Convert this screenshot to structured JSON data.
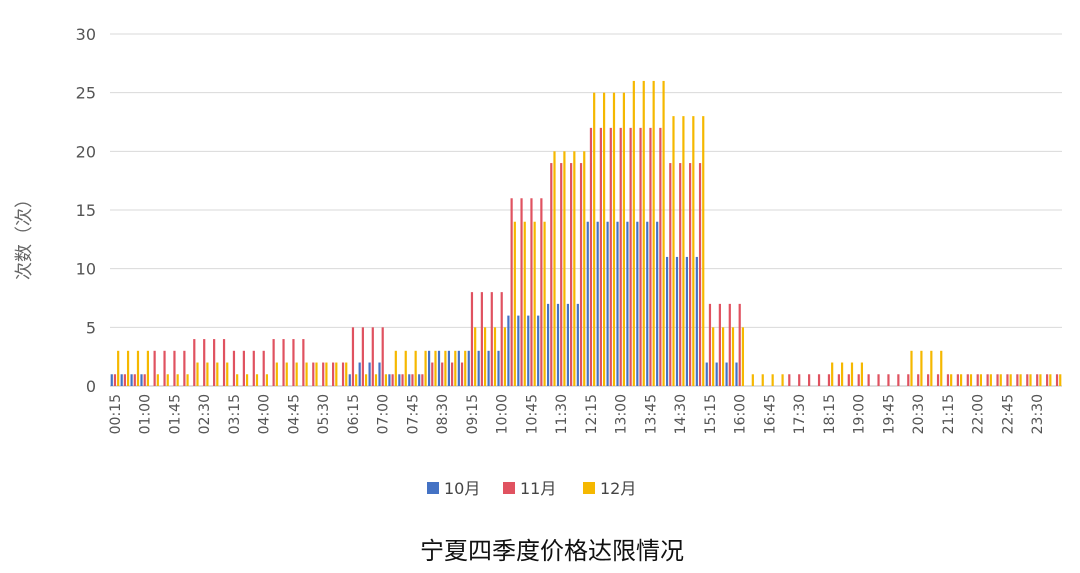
{
  "chart_data": {
    "type": "bar",
    "title": "宁夏四季度价格达限情况",
    "xlabel": "",
    "ylabel": "次数（次）",
    "ylim": [
      0,
      30
    ],
    "yticks": [
      0,
      5,
      10,
      15,
      20,
      25,
      30
    ],
    "grid": true,
    "legend_position": "bottom",
    "colors": {
      "10月": "#4472C4",
      "11月": "#E05260",
      "12月": "#F5B800"
    },
    "x_tick_labels": [
      "00:15",
      "01:00",
      "01:45",
      "02:30",
      "03:15",
      "04:00",
      "04:45",
      "05:30",
      "06:15",
      "07:00",
      "07:45",
      "08:30",
      "09:15",
      "10:00",
      "10:45",
      "11:30",
      "12:15",
      "13:00",
      "13:45",
      "14:30",
      "15:15",
      "16:00",
      "16:45",
      "17:30",
      "18:15",
      "19:00",
      "19:45",
      "20:30",
      "21:15",
      "22:00",
      "22:45",
      "23:30"
    ],
    "categories": [
      "00:15",
      "00:30",
      "00:45",
      "01:00",
      "01:15",
      "01:30",
      "01:45",
      "02:00",
      "02:15",
      "02:30",
      "02:45",
      "03:00",
      "03:15",
      "03:30",
      "03:45",
      "04:00",
      "04:15",
      "04:30",
      "04:45",
      "05:00",
      "05:15",
      "05:30",
      "05:45",
      "06:00",
      "06:15",
      "06:30",
      "06:45",
      "07:00",
      "07:15",
      "07:30",
      "07:45",
      "08:00",
      "08:15",
      "08:30",
      "08:45",
      "09:00",
      "09:15",
      "09:30",
      "09:45",
      "10:00",
      "10:15",
      "10:30",
      "10:45",
      "11:00",
      "11:15",
      "11:30",
      "11:45",
      "12:00",
      "12:15",
      "12:30",
      "12:45",
      "13:00",
      "13:15",
      "13:30",
      "13:45",
      "14:00",
      "14:15",
      "14:30",
      "14:45",
      "15:00",
      "15:15",
      "15:30",
      "15:45",
      "16:00",
      "16:15",
      "16:30",
      "16:45",
      "17:00",
      "17:15",
      "17:30",
      "17:45",
      "18:00",
      "18:15",
      "18:30",
      "18:45",
      "19:00",
      "19:15",
      "19:30",
      "19:45",
      "20:00",
      "20:15",
      "20:30",
      "20:45",
      "21:00",
      "21:15",
      "21:30",
      "21:45",
      "22:00",
      "22:15",
      "22:30",
      "22:45",
      "23:00",
      "23:15",
      "23:30",
      "23:45",
      "24:00"
    ],
    "series": [
      {
        "name": "10月",
        "values": [
          1,
          1,
          1,
          1,
          0,
          0,
          0,
          0,
          0,
          0,
          0,
          0,
          0,
          0,
          0,
          0,
          0,
          0,
          0,
          0,
          0,
          0,
          0,
          0,
          1,
          2,
          2,
          2,
          1,
          1,
          1,
          1,
          3,
          3,
          3,
          3,
          3,
          3,
          3,
          3,
          6,
          6,
          6,
          6,
          7,
          7,
          7,
          7,
          14,
          14,
          14,
          14,
          14,
          14,
          14,
          14,
          11,
          11,
          11,
          11,
          2,
          2,
          2,
          2,
          0,
          0,
          0,
          0,
          0,
          0,
          0,
          0,
          0,
          0,
          0,
          0,
          0,
          0,
          0,
          0,
          0,
          0,
          0,
          0,
          0,
          0,
          0,
          0,
          0,
          0,
          0,
          0,
          0,
          0,
          0,
          0
        ]
      },
      {
        "name": "11月",
        "values": [
          1,
          1,
          1,
          1,
          3,
          3,
          3,
          3,
          4,
          4,
          4,
          4,
          3,
          3,
          3,
          3,
          4,
          4,
          4,
          4,
          2,
          2,
          2,
          2,
          5,
          5,
          5,
          5,
          1,
          1,
          1,
          1,
          2,
          2,
          2,
          2,
          8,
          8,
          8,
          8,
          16,
          16,
          16,
          16,
          19,
          19,
          19,
          19,
          22,
          22,
          22,
          22,
          22,
          22,
          22,
          22,
          19,
          19,
          19,
          19,
          7,
          7,
          7,
          7,
          0,
          0,
          0,
          0,
          1,
          1,
          1,
          1,
          1,
          1,
          1,
          1,
          1,
          1,
          1,
          1,
          1,
          1,
          1,
          1,
          1,
          1,
          1,
          1,
          1,
          1,
          1,
          1,
          1,
          1,
          1,
          1
        ]
      },
      {
        "name": "12月",
        "values": [
          3,
          3,
          3,
          3,
          1,
          1,
          1,
          1,
          2,
          2,
          2,
          2,
          1,
          1,
          1,
          1,
          2,
          2,
          2,
          2,
          2,
          2,
          2,
          2,
          1,
          1,
          1,
          1,
          3,
          3,
          3,
          3,
          3,
          3,
          3,
          3,
          5,
          5,
          5,
          5,
          14,
          14,
          14,
          14,
          20,
          20,
          20,
          20,
          25,
          25,
          25,
          25,
          26,
          26,
          26,
          26,
          23,
          23,
          23,
          23,
          5,
          5,
          5,
          5,
          1,
          1,
          1,
          1,
          0,
          0,
          0,
          0,
          2,
          2,
          2,
          2,
          0,
          0,
          0,
          0,
          3,
          3,
          3,
          3,
          1,
          1,
          1,
          1,
          1,
          1,
          1,
          1,
          1,
          1,
          1,
          1
        ]
      }
    ]
  }
}
